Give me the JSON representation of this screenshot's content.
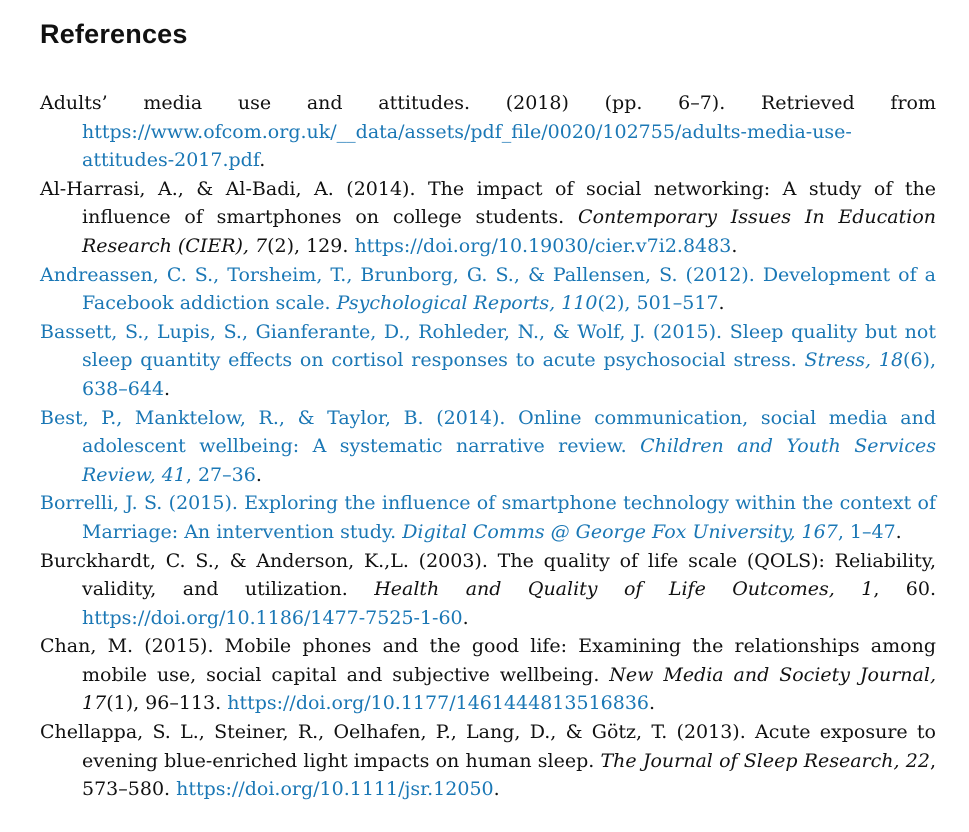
{
  "heading": "References",
  "references": [
    {
      "author_text": "Adults’ media use and attitudes. (2018) (pp. 6–7). Retrieved from ",
      "url": "https://www.ofcom.org.uk/__data/assets/pdf_file/0020/102755/adults-media-use-attitudes-2017.pdf",
      "tail": "."
    },
    {
      "author_text": "Al-Harrasi, A., & Al-Badi, A. (2014). The impact of social networking: A study of the influence of smartphones on college students. ",
      "journal": "Contemporary Issues In Education Research (CIER), 7",
      "details": "(2), 129. ",
      "url": "https://doi.org/10.19030/cier.v7i2.8483",
      "tail": "."
    },
    {
      "author_text": "Andreassen, C. S., Torsheim, T., Brunborg, G. S., & Pallensen, S. (2012). Development of a Facebook addiction scale. ",
      "journal": "Psychological Reports, 110",
      "details": "(2), 501–517",
      "tail": "."
    },
    {
      "author_text": "Bassett, S., Lupis, S., Gianferante, D., Rohleder, N., & Wolf, J. (2015). Sleep quality but not sleep quantity effects on cortisol responses to acute psychosocial stress. ",
      "journal": "Stress, 18",
      "details": "(6), 638–644",
      "tail": "."
    },
    {
      "author_text": "Best, P., Manktelow, R., & Taylor, B. (2014). Online communication, social media and adolescent wellbeing: A systematic narrative review. ",
      "journal": "Children and Youth Services Review, 41",
      "details": ", 27–36",
      "tail": "."
    },
    {
      "author_text": "Borrelli, J. S. (2015). Exploring the influence of smartphone technology within the context of Marriage: An intervention study. ",
      "journal": "Digital Comms @ George Fox University, 167",
      "details": ", 1–47",
      "tail": "."
    },
    {
      "author_text": "Burckhardt, C. S., & Anderson, K.,L. (2003). The quality of life scale (QOLS): Reliability, validity, and utilization. ",
      "journal": "Health and Quality of Life Outcomes, 1",
      "details": ", 60. ",
      "url": "https://doi.org/10.1186/1477-7525-1-60",
      "tail": "."
    },
    {
      "author_text": "Chan, M. (2015). Mobile phones and the good life: Examining the relationships among mobile use, social capital and subjective wellbeing. ",
      "journal": "New Media and Society Journal, 17",
      "details": "(1), 96–113. ",
      "url": "https://doi.org/10.1177/1461444813516836",
      "tail": "."
    },
    {
      "author_text": "Chellappa, S. L., Steiner, R., Oelhafen, P., Lang, D., & Götz, T. (2013). Acute exposure to evening blue-enriched light impacts on human sleep. ",
      "journal": "The Journal of Sleep Research, 22",
      "details": ", 573–580. ",
      "url": "https://doi.org/10.1111/jsr.12050",
      "tail": "."
    }
  ],
  "colors": {
    "link": "#1a77b5",
    "text": "#111111"
  }
}
